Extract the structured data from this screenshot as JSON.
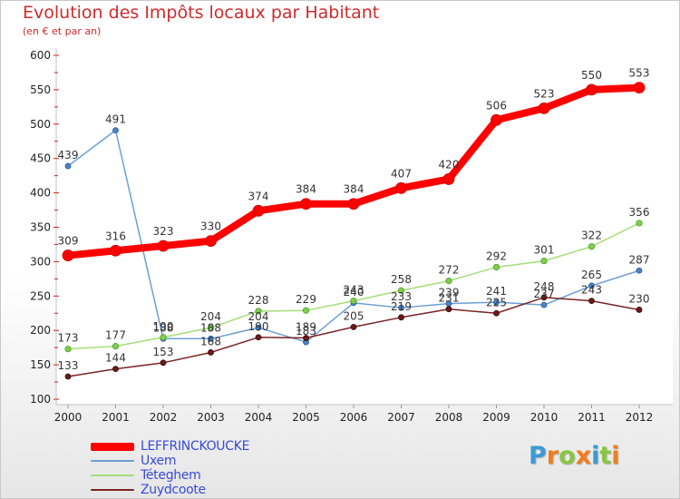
{
  "chart_data": {
    "type": "line",
    "title": "Evolution des Impôts locaux par Habitant",
    "subtitle": "(en € et par an)",
    "x": [
      "2000",
      "2001",
      "2002",
      "2003",
      "2004",
      "2005",
      "2006",
      "2007",
      "2008",
      "2009",
      "2010",
      "2011",
      "2012"
    ],
    "ylim": [
      100,
      600
    ],
    "yticks": [
      100,
      150,
      200,
      250,
      300,
      350,
      400,
      450,
      500,
      550,
      600
    ],
    "series": [
      {
        "name": "LEFFRINCKOUCKE",
        "color": "#ff0000",
        "values": [
          309,
          316,
          323,
          330,
          374,
          384,
          384,
          407,
          420,
          506,
          523,
          550,
          553
        ]
      },
      {
        "name": "Uxem",
        "color": "#6b9fd4",
        "values": [
          439,
          491,
          188,
          188,
          204,
          183,
          240,
          233,
          239,
          241,
          237,
          265,
          287
        ]
      },
      {
        "name": "Téteghem",
        "color": "#a6de7a",
        "values": [
          173,
          177,
          190,
          204,
          228,
          229,
          243,
          258,
          272,
          292,
          301,
          322,
          356
        ]
      },
      {
        "name": "Zuydcoote",
        "color": "#7a2424",
        "values": [
          133,
          144,
          153,
          168,
          190,
          189,
          205,
          219,
          231,
          225,
          248,
          243,
          230
        ]
      }
    ],
    "legend_position": "bottom-left"
  },
  "brand": {
    "letters": [
      "P",
      "r",
      "o",
      "x",
      "i",
      "t",
      "i"
    ],
    "colors": [
      "#3a9bd6",
      "#f07d1e",
      "#88c540",
      "#f07d1e",
      "#3a9bd6",
      "#88c540",
      "#f07d1e"
    ]
  }
}
